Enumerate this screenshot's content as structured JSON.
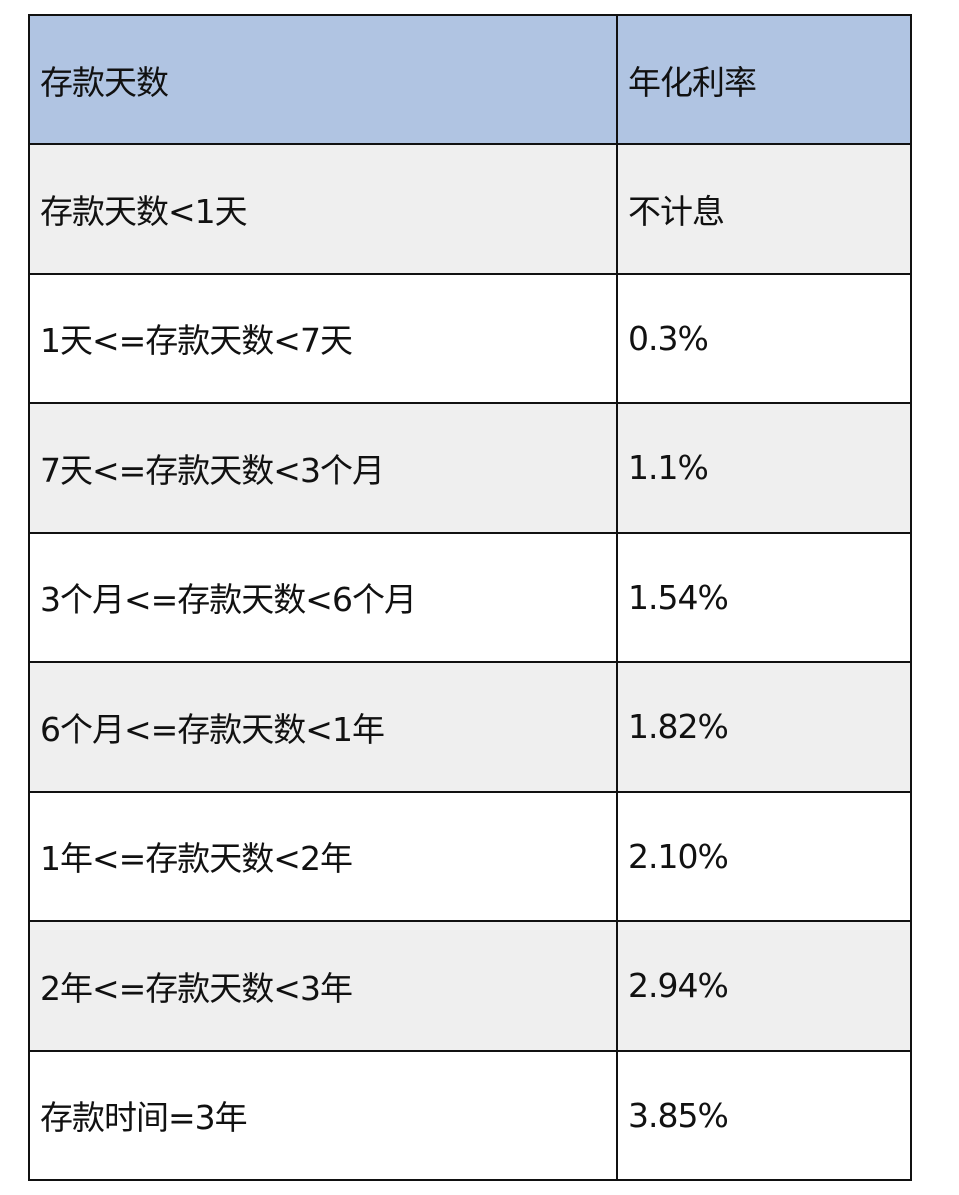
{
  "table": {
    "headers": [
      "存款天数",
      "年化利率"
    ],
    "rows": [
      [
        "存款天数<1天",
        "不计息"
      ],
      [
        "1天<=存款天数<7天",
        "0.3%"
      ],
      [
        "7天<=存款天数<3个月",
        "1.1%"
      ],
      [
        "3个月<=存款天数<6个月",
        "1.54%"
      ],
      [
        "6个月<=存款天数<1年",
        "1.82%"
      ],
      [
        "1年<=存款天数<2年",
        "2.10%"
      ],
      [
        "2年<=存款天数<3年",
        "2.94%"
      ],
      [
        "存款时间=3年",
        "3.85%"
      ]
    ]
  },
  "colors": {
    "header_bg": "#b0c4e2",
    "alt_row_bg": "#efefef",
    "border": "#111111"
  }
}
